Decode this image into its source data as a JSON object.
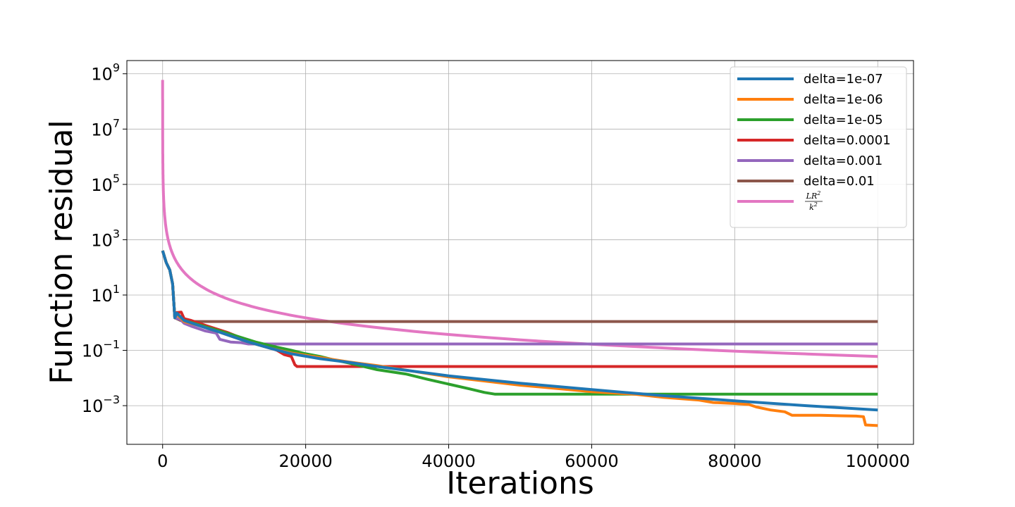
{
  "chart_data": {
    "type": "line",
    "title": "",
    "xlabel": "Iterations",
    "ylabel": "Function residual",
    "yscale": "log",
    "xlim": [
      -5000,
      105000
    ],
    "ylim": [
      4e-05,
      3000000000
    ],
    "x_ticks": [
      0,
      20000,
      40000,
      60000,
      80000,
      100000
    ],
    "y_ticks": [
      {
        "value": 0.001,
        "base": "10",
        "exp": "−3"
      },
      {
        "value": 0.1,
        "base": "10",
        "exp": "−1"
      },
      {
        "value": 10,
        "base": "10",
        "exp": "1"
      },
      {
        "value": 1000,
        "base": "10",
        "exp": "3"
      },
      {
        "value": 100000,
        "base": "10",
        "exp": "5"
      },
      {
        "value": 10000000,
        "base": "10",
        "exp": "7"
      },
      {
        "value": 1000000000,
        "base": "10",
        "exp": "9"
      }
    ],
    "grid": true,
    "legend_position": "top-right",
    "series": [
      {
        "name": "delta=1e-07",
        "color": "#1f77b4",
        "points": [
          [
            0,
            400
          ],
          [
            500,
            150
          ],
          [
            1000,
            80
          ],
          [
            1400,
            25
          ],
          [
            1700,
            1.5
          ],
          [
            2000,
            2.2
          ],
          [
            3000,
            1.2
          ],
          [
            5000,
            0.8
          ],
          [
            8000,
            0.45
          ],
          [
            10000,
            0.3
          ],
          [
            12000,
            0.2
          ],
          [
            15000,
            0.12
          ],
          [
            18000,
            0.075
          ],
          [
            22000,
            0.05
          ],
          [
            26000,
            0.037
          ],
          [
            30000,
            0.026
          ],
          [
            40000,
            0.012
          ],
          [
            50000,
            0.0065
          ],
          [
            60000,
            0.0038
          ],
          [
            70000,
            0.0023
          ],
          [
            80000,
            0.0015
          ],
          [
            90000,
            0.001
          ],
          [
            100000,
            0.0007
          ]
        ]
      },
      {
        "name": "delta=1e-06",
        "color": "#ff7f0e",
        "points": [
          [
            0,
            400
          ],
          [
            500,
            150
          ],
          [
            1000,
            80
          ],
          [
            1400,
            25
          ],
          [
            1700,
            1.5
          ],
          [
            2000,
            2.0
          ],
          [
            3000,
            1.1
          ],
          [
            5000,
            0.8
          ],
          [
            8000,
            0.45
          ],
          [
            10000,
            0.3
          ],
          [
            12000,
            0.2
          ],
          [
            15000,
            0.12
          ],
          [
            18000,
            0.08
          ],
          [
            22000,
            0.055
          ],
          [
            26000,
            0.038
          ],
          [
            30000,
            0.028
          ],
          [
            40000,
            0.011
          ],
          [
            50000,
            0.0055
          ],
          [
            60000,
            0.0032
          ],
          [
            66000,
            0.0026
          ],
          [
            70000,
            0.002
          ],
          [
            75000,
            0.0016
          ],
          [
            77000,
            0.0013
          ],
          [
            80000,
            0.0012
          ],
          [
            82000,
            0.0011
          ],
          [
            83000,
            0.0009
          ],
          [
            85000,
            0.0007
          ],
          [
            87000,
            0.0006
          ],
          [
            88000,
            0.00045
          ],
          [
            92000,
            0.00045
          ],
          [
            95000,
            0.00043
          ],
          [
            97000,
            0.00042
          ],
          [
            98000,
            0.0004
          ],
          [
            98300,
            0.0002
          ],
          [
            100000,
            0.00019
          ]
        ]
      },
      {
        "name": "delta=1e-05",
        "color": "#2ca02c",
        "points": [
          [
            0,
            400
          ],
          [
            500,
            150
          ],
          [
            1000,
            80
          ],
          [
            1400,
            25
          ],
          [
            1700,
            1.5
          ],
          [
            2000,
            2.2
          ],
          [
            3000,
            1.2
          ],
          [
            5000,
            0.85
          ],
          [
            8000,
            0.5
          ],
          [
            10000,
            0.35
          ],
          [
            13000,
            0.2
          ],
          [
            16000,
            0.13
          ],
          [
            18000,
            0.1
          ],
          [
            20000,
            0.075
          ],
          [
            22000,
            0.06
          ],
          [
            24000,
            0.045
          ],
          [
            26000,
            0.035
          ],
          [
            30000,
            0.02
          ],
          [
            34000,
            0.014
          ],
          [
            37000,
            0.009
          ],
          [
            40000,
            0.006
          ],
          [
            43000,
            0.004
          ],
          [
            45000,
            0.003
          ],
          [
            46500,
            0.0026
          ],
          [
            50000,
            0.0026
          ],
          [
            100000,
            0.0026
          ]
        ]
      },
      {
        "name": "delta=0.0001",
        "color": "#d62728",
        "points": [
          [
            0,
            400
          ],
          [
            500,
            150
          ],
          [
            1000,
            80
          ],
          [
            1400,
            25
          ],
          [
            1700,
            1.5
          ],
          [
            1800,
            2.3
          ],
          [
            2600,
            2.4
          ],
          [
            3000,
            1.4
          ],
          [
            4000,
            1.2
          ],
          [
            6000,
            0.8
          ],
          [
            9000,
            0.45
          ],
          [
            12000,
            0.22
          ],
          [
            14000,
            0.15
          ],
          [
            16000,
            0.1
          ],
          [
            17000,
            0.07
          ],
          [
            18000,
            0.06
          ],
          [
            18500,
            0.03
          ],
          [
            18800,
            0.026
          ],
          [
            100000,
            0.026
          ]
        ]
      },
      {
        "name": "delta=0.001",
        "color": "#9467bd",
        "points": [
          [
            0,
            400
          ],
          [
            500,
            150
          ],
          [
            1000,
            80
          ],
          [
            1400,
            25
          ],
          [
            1700,
            1.5
          ],
          [
            2500,
            1.3
          ],
          [
            3000,
            0.95
          ],
          [
            4000,
            0.75
          ],
          [
            6000,
            0.5
          ],
          [
            7500,
            0.42
          ],
          [
            8000,
            0.25
          ],
          [
            9500,
            0.2
          ],
          [
            11000,
            0.19
          ],
          [
            12000,
            0.17
          ],
          [
            100000,
            0.17
          ]
        ]
      },
      {
        "name": "delta=0.01",
        "color": "#8c564b",
        "points": [
          [
            0,
            400
          ],
          [
            500,
            150
          ],
          [
            1000,
            80
          ],
          [
            1400,
            25
          ],
          [
            1700,
            1.5
          ],
          [
            2500,
            1.2
          ],
          [
            3000,
            1.1
          ],
          [
            100000,
            1.1
          ]
        ]
      },
      {
        "name": "",
        "color": "#e377c2",
        "formula": "LR2_over_k2",
        "C": 600000000
      }
    ],
    "legend_math_label": {
      "num_base": "LR",
      "num_exp": "2",
      "den_base": "k",
      "den_exp": "2"
    }
  }
}
